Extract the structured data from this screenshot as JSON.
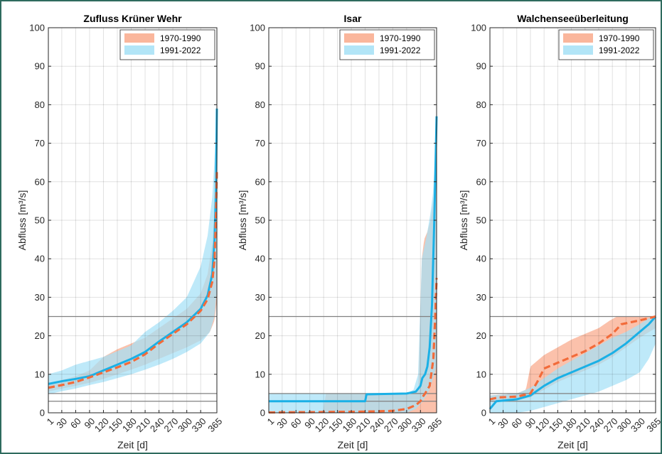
{
  "chart_data": [
    {
      "type": "line",
      "title": "Zufluss Krüner Wehr",
      "xlabel": "Zeit [d]",
      "ylabel": "Abfluss [m³/s]",
      "xlim": [
        1,
        365
      ],
      "ylim": [
        0,
        100
      ],
      "xticks": [
        1,
        30,
        60,
        90,
        120,
        150,
        180,
        210,
        240,
        270,
        300,
        330,
        365
      ],
      "yticks": [
        0,
        10,
        20,
        30,
        40,
        50,
        60,
        70,
        80,
        90,
        100
      ],
      "grid": true,
      "legend_position": "top-right",
      "hlines": [
        3,
        5,
        25
      ],
      "series": [
        {
          "name": "1970-1990",
          "color": "#f26b3a",
          "band_color": "#f9a98b",
          "median": {
            "x": [
              1,
              30,
              60,
              90,
              120,
              150,
              180,
              210,
              240,
              270,
              300,
              330,
              345,
              355,
              360,
              363,
              365
            ],
            "y": [
              6.5,
              7.2,
              8.0,
              9.2,
              10.5,
              11.8,
              13.2,
              15.2,
              18.0,
              20.5,
              23.0,
              26.5,
              29.5,
              34,
              40,
              52,
              63
            ]
          },
          "band_low": {
            "x": [
              1,
              30,
              60,
              90,
              120,
              150,
              180,
              210,
              240,
              270,
              300,
              330,
              350,
              360,
              365
            ],
            "y": [
              5.5,
              6.3,
              7.0,
              7.8,
              8.8,
              10.0,
              11.2,
              12.5,
              14.0,
              15.5,
              17.0,
              18.8,
              21.0,
              24.0,
              29.0
            ]
          },
          "band_high": {
            "x": [
              1,
              30,
              60,
              90,
              120,
              150,
              180,
              210,
              240,
              270,
              300,
              330,
              345,
              355,
              360,
              365
            ],
            "y": [
              7.5,
              8.5,
              9.5,
              11.0,
              14.5,
              16.5,
              18.0,
              19.5,
              22.0,
              24.5,
              27.0,
              31.0,
              36.0,
              44.0,
              52.0,
              62.0
            ]
          }
        },
        {
          "name": "1991-2022",
          "color": "#1ab0e6",
          "band_color": "#a5e1f6",
          "median": {
            "x": [
              1,
              30,
              60,
              90,
              120,
              150,
              180,
              210,
              240,
              270,
              300,
              330,
              345,
              355,
              360,
              363,
              365
            ],
            "y": [
              7.5,
              8.2,
              8.8,
              9.5,
              11.0,
              12.5,
              14.0,
              15.8,
              18.5,
              21.0,
              23.5,
              27.0,
              30.5,
              36,
              45,
              58,
              79
            ]
          },
          "band_low": {
            "x": [
              1,
              30,
              60,
              90,
              120,
              150,
              180,
              210,
              240,
              270,
              300,
              330,
              350,
              360,
              365
            ],
            "y": [
              4.8,
              5.6,
              6.3,
              7.2,
              8.0,
              9.0,
              10.0,
              11.2,
              12.5,
              14.0,
              15.8,
              18.0,
              21.0,
              25.0,
              32.0
            ]
          },
          "band_high": {
            "x": [
              1,
              30,
              60,
              90,
              120,
              150,
              180,
              210,
              240,
              270,
              300,
              330,
              345,
              355,
              360,
              365
            ],
            "y": [
              10.0,
              11.0,
              12.5,
              13.5,
              14.5,
              16.0,
              17.5,
              21.0,
              23.5,
              26.5,
              30.0,
              38.0,
              46.0,
              56.0,
              66.0,
              79.0
            ]
          }
        }
      ]
    },
    {
      "type": "line",
      "title": "Isar",
      "xlabel": "Zeit [d]",
      "ylabel": "Abfluss [m³/s]",
      "xlim": [
        1,
        365
      ],
      "ylim": [
        0,
        100
      ],
      "xticks": [
        1,
        30,
        60,
        90,
        120,
        150,
        180,
        210,
        240,
        270,
        300,
        330,
        365
      ],
      "yticks": [
        0,
        10,
        20,
        30,
        40,
        50,
        60,
        70,
        80,
        90,
        100
      ],
      "grid": true,
      "legend_position": "top-right",
      "hlines": [
        3,
        5,
        25
      ],
      "series": [
        {
          "name": "1970-1990",
          "color": "#f26b3a",
          "band_color": "#f9a98b",
          "median": {
            "x": [
              1,
              120,
              210,
              270,
              300,
              320,
              330,
              334,
              340,
              350,
              358,
              362,
              365
            ],
            "y": [
              0.1,
              0.2,
              0.3,
              0.5,
              1.0,
              2.0,
              3.0,
              4.0,
              5.0,
              7.0,
              14.0,
              25.0,
              35.0
            ]
          },
          "band_low": {
            "x": [
              1,
              120,
              300,
              365
            ],
            "y": [
              0,
              0,
              0,
              0
            ]
          },
          "band_high": {
            "x": [
              1,
              118,
              125,
              300,
              325,
              333,
              338,
              345,
              352,
              358,
              362,
              365
            ],
            "y": [
              0,
              0,
              5.0,
              5.0,
              6.0,
              40.0,
              45.0,
              47.0,
              50.0,
              55.0,
              60.0,
              65.0
            ]
          }
        },
        {
          "name": "1991-2022",
          "color": "#1ab0e6",
          "band_color": "#a5e1f6",
          "median": {
            "x": [
              1,
              210,
              213,
              300,
              320,
              330,
              334,
              340,
              345,
              350,
              355,
              360,
              365
            ],
            "y": [
              3.0,
              3.0,
              4.8,
              5.0,
              5.5,
              7.0,
              9.0,
              10.0,
              12.0,
              17.0,
              28.0,
              50.0,
              77.0
            ]
          },
          "band_low": {
            "x": [
              1,
              300,
              320,
              335,
              350,
              365
            ],
            "y": [
              0,
              0,
              1.0,
              3.0,
              6.0,
              12.0
            ]
          },
          "band_high": {
            "x": [
              1,
              300,
              315,
              325,
              333,
              340,
              345,
              352,
              358,
              362,
              365
            ],
            "y": [
              5.0,
              5.0,
              6.0,
              10.0,
              40.0,
              44.0,
              47.0,
              52.0,
              58.0,
              68.0,
              78.0
            ]
          }
        }
      ]
    },
    {
      "type": "line",
      "title": "Walchenseeüberleitung",
      "xlabel": "Zeit [d]",
      "ylabel": "Abfluss [m³/s]",
      "xlim": [
        1,
        365
      ],
      "ylim": [
        0,
        100
      ],
      "xticks": [
        1,
        30,
        60,
        90,
        120,
        150,
        180,
        210,
        240,
        270,
        300,
        330,
        365
      ],
      "yticks": [
        0,
        10,
        20,
        30,
        40,
        50,
        60,
        70,
        80,
        90,
        100
      ],
      "grid": true,
      "legend_position": "top-right",
      "hlines": [
        3,
        5,
        25
      ],
      "series": [
        {
          "name": "1970-1990",
          "color": "#f26b3a",
          "band_color": "#f9a98b",
          "median": {
            "x": [
              1,
              20,
              60,
              90,
              105,
              120,
              150,
              180,
              210,
              240,
              270,
              290,
              330,
              365
            ],
            "y": [
              3.5,
              4.0,
              4.2,
              5.0,
              8.0,
              11.5,
              13.0,
              14.5,
              16.0,
              18.0,
              20.5,
              23.0,
              24.0,
              25.0
            ]
          },
          "band_low": {
            "x": [
              1,
              60,
              90,
              120,
              150,
              180,
              210,
              240,
              270,
              300,
              330,
              365
            ],
            "y": [
              3.0,
              3.2,
              4.0,
              6.0,
              8.0,
              9.5,
              11.0,
              12.5,
              14.5,
              17.0,
              19.5,
              22.0
            ]
          },
          "band_high": {
            "x": [
              1,
              60,
              80,
              90,
              120,
              150,
              180,
              210,
              240,
              265,
              280,
              330,
              365
            ],
            "y": [
              4.5,
              5.0,
              6.0,
              12.0,
              15.0,
              17.0,
              19.0,
              20.5,
              22.0,
              24.0,
              25.0,
              25.0,
              25.0
            ]
          }
        },
        {
          "name": "1991-2022",
          "color": "#1ab0e6",
          "band_color": "#a5e1f6",
          "median": {
            "x": [
              1,
              15,
              60,
              90,
              120,
              150,
              180,
              210,
              240,
              270,
              300,
              330,
              350,
              365
            ],
            "y": [
              1.0,
              3.0,
              3.5,
              4.5,
              7.0,
              9.0,
              10.5,
              12.0,
              13.5,
              15.5,
              18.0,
              21.0,
              23.0,
              25.0
            ]
          },
          "band_low": {
            "x": [
              1,
              60,
              90,
              120,
              150,
              180,
              210,
              240,
              270,
              300,
              330,
              350,
              365
            ],
            "y": [
              0,
              0,
              0.5,
              1.5,
              2.5,
              3.5,
              4.5,
              5.5,
              7.0,
              8.5,
              10.5,
              14.0,
              18.0
            ]
          },
          "band_high": {
            "x": [
              1,
              60,
              90,
              120,
              150,
              180,
              210,
              240,
              270,
              300,
              330,
              350,
              365
            ],
            "y": [
              4.5,
              5.0,
              6.5,
              9.0,
              11.5,
              13.5,
              15.5,
              17.5,
              19.5,
              21.0,
              23.0,
              24.5,
              25.0
            ]
          }
        }
      ]
    }
  ]
}
